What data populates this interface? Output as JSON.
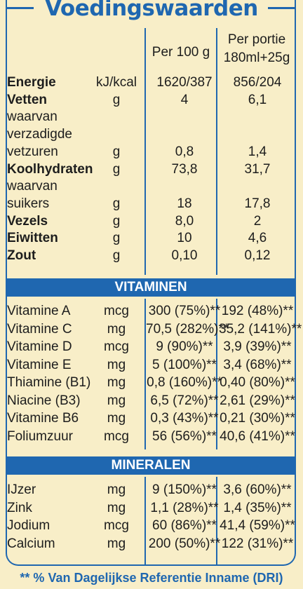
{
  "title": "Voedingswaarden",
  "colors": {
    "brand_blue": "#1f67b0",
    "background": "#f8eec8",
    "text": "#1d1d1d"
  },
  "headers": {
    "per100": "Per 100 g",
    "portion_line1": "Per portie",
    "portion_line2": "180ml+25g"
  },
  "nutrition": [
    {
      "name": "Energie",
      "unit": "kJ/kcal",
      "per100": "1620/387",
      "portion": "856/204"
    },
    {
      "name": "Vetten",
      "unit": "g",
      "per100": "4",
      "portion": "6,1"
    },
    {
      "name": "waarvan",
      "unit": "",
      "per100": "",
      "portion": ""
    },
    {
      "name": "verzadigde",
      "unit": "",
      "per100": "",
      "portion": ""
    },
    {
      "name": "vetzuren",
      "unit": "g",
      "per100": "0,8",
      "portion": "1,4"
    },
    {
      "name": "Koolhydraten",
      "unit": "g",
      "per100": "73,8",
      "portion": "31,7"
    },
    {
      "name": "waarvan",
      "unit": "",
      "per100": "",
      "portion": ""
    },
    {
      "name": "suikers",
      "unit": "g",
      "per100": "18",
      "portion": "17,8"
    },
    {
      "name": "Vezels",
      "unit": "g",
      "per100": "8,0",
      "portion": "2"
    },
    {
      "name": "Eiwitten",
      "unit": "g",
      "per100": "10",
      "portion": "4,6"
    },
    {
      "name": "Zout",
      "unit": "g",
      "per100": "0,10",
      "portion": "0,12"
    }
  ],
  "vitamins_title": "VITAMINEN",
  "vitamins": [
    {
      "name": "Vitamine A",
      "unit": "mcg",
      "per100": "300 (75%)**",
      "portion": "192 (48%)**"
    },
    {
      "name": "Vitamine C",
      "unit": "mg",
      "per100": "70,5 (282%)**",
      "portion": "35,2 (141%)**"
    },
    {
      "name": "Vitamine D",
      "unit": "mcg",
      "per100": "9 (90%)**",
      "portion": "3,9 (39%)**"
    },
    {
      "name": "Vitamine E",
      "unit": "mg",
      "per100": "5 (100%)**",
      "portion": "3,4 (68%)**"
    },
    {
      "name": "Thiamine (B1)",
      "unit": "mg",
      "per100": "0,8 (160%)**",
      "portion": "0,40 (80%)**"
    },
    {
      "name": "Niacine (B3)",
      "unit": "mg",
      "per100": "6,5 (72%)**",
      "portion": "2,61 (29%)**"
    },
    {
      "name": "Vitamine B6",
      "unit": "mg",
      "per100": "0,3 (43%)**",
      "portion": "0,21 (30%)**"
    },
    {
      "name": "Foliumzuur",
      "unit": "mcg",
      "per100": "56 (56%)**",
      "portion": "40,6 (41%)**"
    }
  ],
  "minerals_title": "MINERALEN",
  "minerals": [
    {
      "name": "IJzer",
      "unit": "mg",
      "per100": "9 (150%)**",
      "portion": "3,6 (60%)**"
    },
    {
      "name": "Zink",
      "unit": "mg",
      "per100": "1,1 (28%)**",
      "portion": "1,4 (35%)**"
    },
    {
      "name": "Jodium",
      "unit": "mcg",
      "per100": "60 (86%)**",
      "portion": "41,4 (59%)**"
    },
    {
      "name": "Calcium",
      "unit": "mg",
      "per100": "200 (50%)**",
      "portion": "122 (31%)**"
    }
  ],
  "footnote": "** % Van Dagelijkse Referentie Inname (DRI)"
}
